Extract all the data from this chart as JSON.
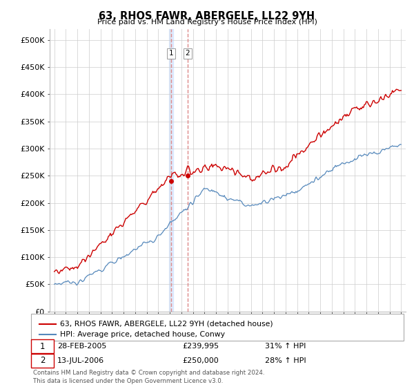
{
  "title": "63, RHOS FAWR, ABERGELE, LL22 9YH",
  "subtitle": "Price paid vs. HM Land Registry's House Price Index (HPI)",
  "ylabel_ticks": [
    "£0",
    "£50K",
    "£100K",
    "£150K",
    "£200K",
    "£250K",
    "£300K",
    "£350K",
    "£400K",
    "£450K",
    "£500K"
  ],
  "ytick_values": [
    0,
    50000,
    100000,
    150000,
    200000,
    250000,
    300000,
    350000,
    400000,
    450000,
    500000
  ],
  "ylim": [
    0,
    520000
  ],
  "xlim_start": 1994.6,
  "xlim_end": 2025.4,
  "legend_line1": "63, RHOS FAWR, ABERGELE, LL22 9YH (detached house)",
  "legend_line2": "HPI: Average price, detached house, Conwy",
  "sale1_date": "28-FEB-2005",
  "sale1_price": "£239,995",
  "sale1_hpi": "31% ↑ HPI",
  "sale2_date": "13-JUL-2006",
  "sale2_price": "£250,000",
  "sale2_hpi": "28% ↑ HPI",
  "footer": "Contains HM Land Registry data © Crown copyright and database right 2024.\nThis data is licensed under the Open Government Licence v3.0.",
  "red_color": "#cc0000",
  "blue_color": "#5588bb",
  "dashed_line_color": "#dd8888",
  "shade_color": "#cce0ff",
  "background_color": "#ffffff",
  "grid_color": "#cccccc",
  "sale1_x": 2005.12,
  "sale1_y": 239995,
  "sale2_x": 2006.54,
  "sale2_y": 250000
}
